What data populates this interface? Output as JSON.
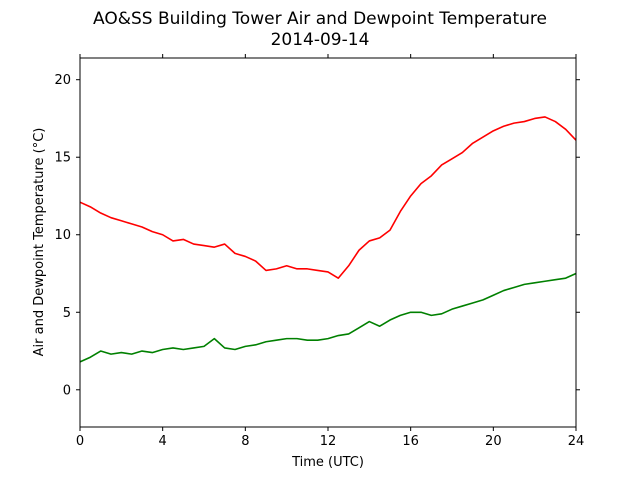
{
  "chart_data": {
    "type": "line",
    "title": "AO&SS Building Tower Air and Dewpoint Temperature",
    "subtitle": "2014-09-14",
    "xlabel": "Time (UTC)",
    "ylabel": "Air and Dewpoint Temperature (°C)",
    "xlim": [
      0,
      24
    ],
    "ylim": [
      -2.4,
      21.4
    ],
    "xticks": [
      0,
      4,
      8,
      12,
      16,
      20,
      24
    ],
    "yticks": [
      0,
      5,
      10,
      15,
      20
    ],
    "grid": false,
    "series": [
      {
        "color": "#ff0000",
        "x": [
          0,
          0.5,
          1,
          1.5,
          2,
          2.5,
          3,
          3.5,
          4,
          4.5,
          5,
          5.5,
          6,
          6.5,
          7,
          7.5,
          8,
          8.5,
          9,
          9.5,
          10,
          10.5,
          11,
          11.5,
          12,
          12.5,
          13,
          13.5,
          14,
          14.5,
          15,
          15.5,
          16,
          16.5,
          17,
          17.5,
          18,
          18.5,
          19,
          19.5,
          20,
          20.5,
          21,
          21.5,
          22,
          22.5,
          23,
          23.5,
          24
        ],
        "values": [
          12.1,
          11.8,
          11.4,
          11.1,
          10.9,
          10.7,
          10.5,
          10.2,
          10.0,
          9.6,
          9.7,
          9.4,
          9.3,
          9.2,
          9.4,
          8.8,
          8.6,
          8.3,
          7.7,
          7.8,
          8.0,
          7.8,
          7.8,
          7.7,
          7.6,
          7.2,
          8.0,
          9.0,
          9.6,
          9.8,
          10.3,
          11.5,
          12.5,
          13.3,
          13.8,
          14.5,
          14.9,
          15.3,
          15.9,
          16.3,
          16.7,
          17.0,
          17.2,
          17.3,
          17.5,
          17.6,
          17.3,
          16.8,
          16.1
        ]
      },
      {
        "color": "#008000",
        "x": [
          0,
          0.5,
          1,
          1.5,
          2,
          2.5,
          3,
          3.5,
          4,
          4.5,
          5,
          5.5,
          6,
          6.5,
          7,
          7.5,
          8,
          8.5,
          9,
          9.5,
          10,
          10.5,
          11,
          11.5,
          12,
          12.5,
          13,
          13.5,
          14,
          14.5,
          15,
          15.5,
          16,
          16.5,
          17,
          17.5,
          18,
          18.5,
          19,
          19.5,
          20,
          20.5,
          21,
          21.5,
          22,
          22.5,
          23,
          23.5,
          24
        ],
        "values": [
          1.8,
          2.1,
          2.5,
          2.3,
          2.4,
          2.3,
          2.5,
          2.4,
          2.6,
          2.7,
          2.6,
          2.7,
          2.8,
          3.3,
          2.7,
          2.6,
          2.8,
          2.9,
          3.1,
          3.2,
          3.3,
          3.3,
          3.2,
          3.2,
          3.3,
          3.5,
          3.6,
          4.0,
          4.4,
          4.1,
          4.5,
          4.8,
          5.0,
          5.0,
          4.8,
          4.9,
          5.2,
          5.4,
          5.6,
          5.8,
          6.1,
          6.4,
          6.6,
          6.8,
          6.9,
          7.0,
          7.1,
          7.2,
          7.5
        ]
      }
    ]
  }
}
